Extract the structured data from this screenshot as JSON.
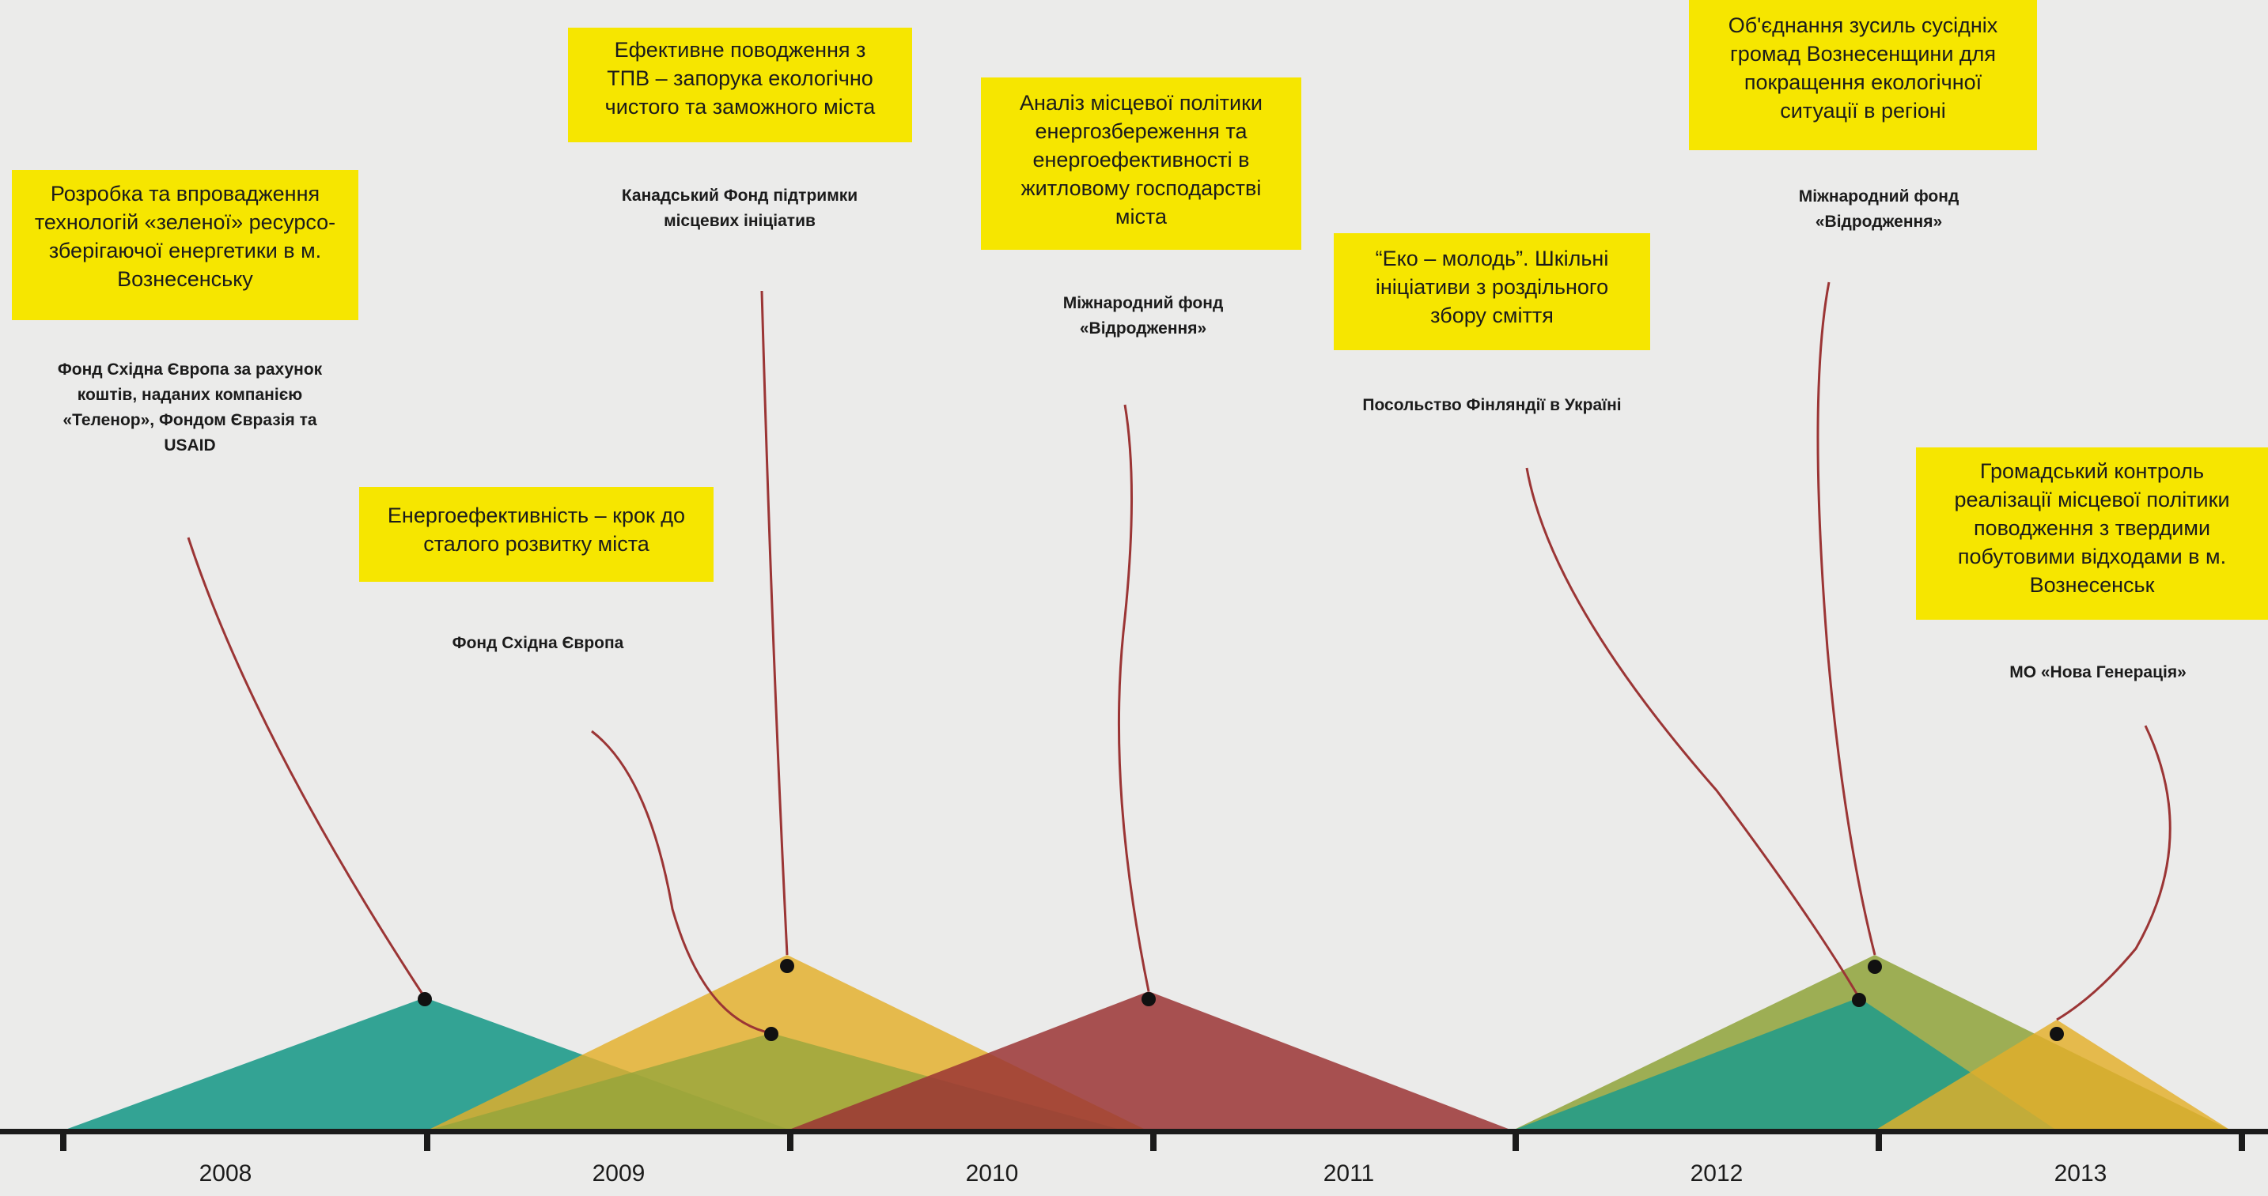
{
  "projects": [
    {
      "title_lines": [
        "Розробка та впровадження",
        "технологій «зеленої» ресурсо-",
        "зберігаючої енергетики в м.",
        "Вознесенську"
      ],
      "funder_lines": [
        "Фонд  Східна Європа за рахунок",
        "коштів, наданих компанією",
        "«Теленор», Фондом Євразія та",
        "USAID"
      ],
      "color": "#1f9b8b"
    },
    {
      "title_lines": [
        "Енергоефективність – крок до",
        "сталого розвитку міста"
      ],
      "funder_lines": [
        "Фонд  Східна Європа"
      ],
      "color": "#8fa33a"
    },
    {
      "title_lines": [
        "Ефективне поводження з",
        "ТПВ – запорука екологічно",
        "чистого та заможного міста"
      ],
      "funder_lines": [
        "Канадський Фонд підтримки",
        "місцевих ініціатив"
      ],
      "color": "#e3ae2a"
    },
    {
      "title_lines": [
        "Аналіз місцевої політики",
        "енергозбереження та",
        "енергоефективності в",
        "житловому господарстві",
        "міста"
      ],
      "funder_lines": [
        "Міжнародний фонд",
        "«Відродження»"
      ],
      "color": "#9b3535"
    },
    {
      "title_lines": [
        "“Еко – молодь”. Шкільні",
        "ініціативи з роздільного",
        "збору сміття"
      ],
      "funder_lines": [
        "Посольство Фінляндії в Україні"
      ],
      "color": "#1f9b8b"
    },
    {
      "title_lines": [
        "Об'єднання зусиль сусідніх",
        "громад Вознесенщини для",
        "покращення екологічної",
        "ситуації в регіоні"
      ],
      "funder_lines": [
        "Міжнародний фонд",
        "«Відродження»"
      ],
      "color": "#8fa33a"
    },
    {
      "title_lines": [
        "Громадський контроль",
        "реалізації  місцевої політики",
        "поводження з твердими",
        "побутовими відходами в м.",
        "Вознесенськ"
      ],
      "funder_lines": [
        "МО «Нова Генерація»"
      ],
      "color": "#e3ae2a"
    }
  ],
  "timeline": {
    "years": [
      "2008",
      "2009",
      "2010",
      "2011",
      "2012",
      "2013"
    ],
    "axis_color": "#1b1b1b",
    "connector_color": "#9b3535",
    "box_color": "#f6e600"
  }
}
